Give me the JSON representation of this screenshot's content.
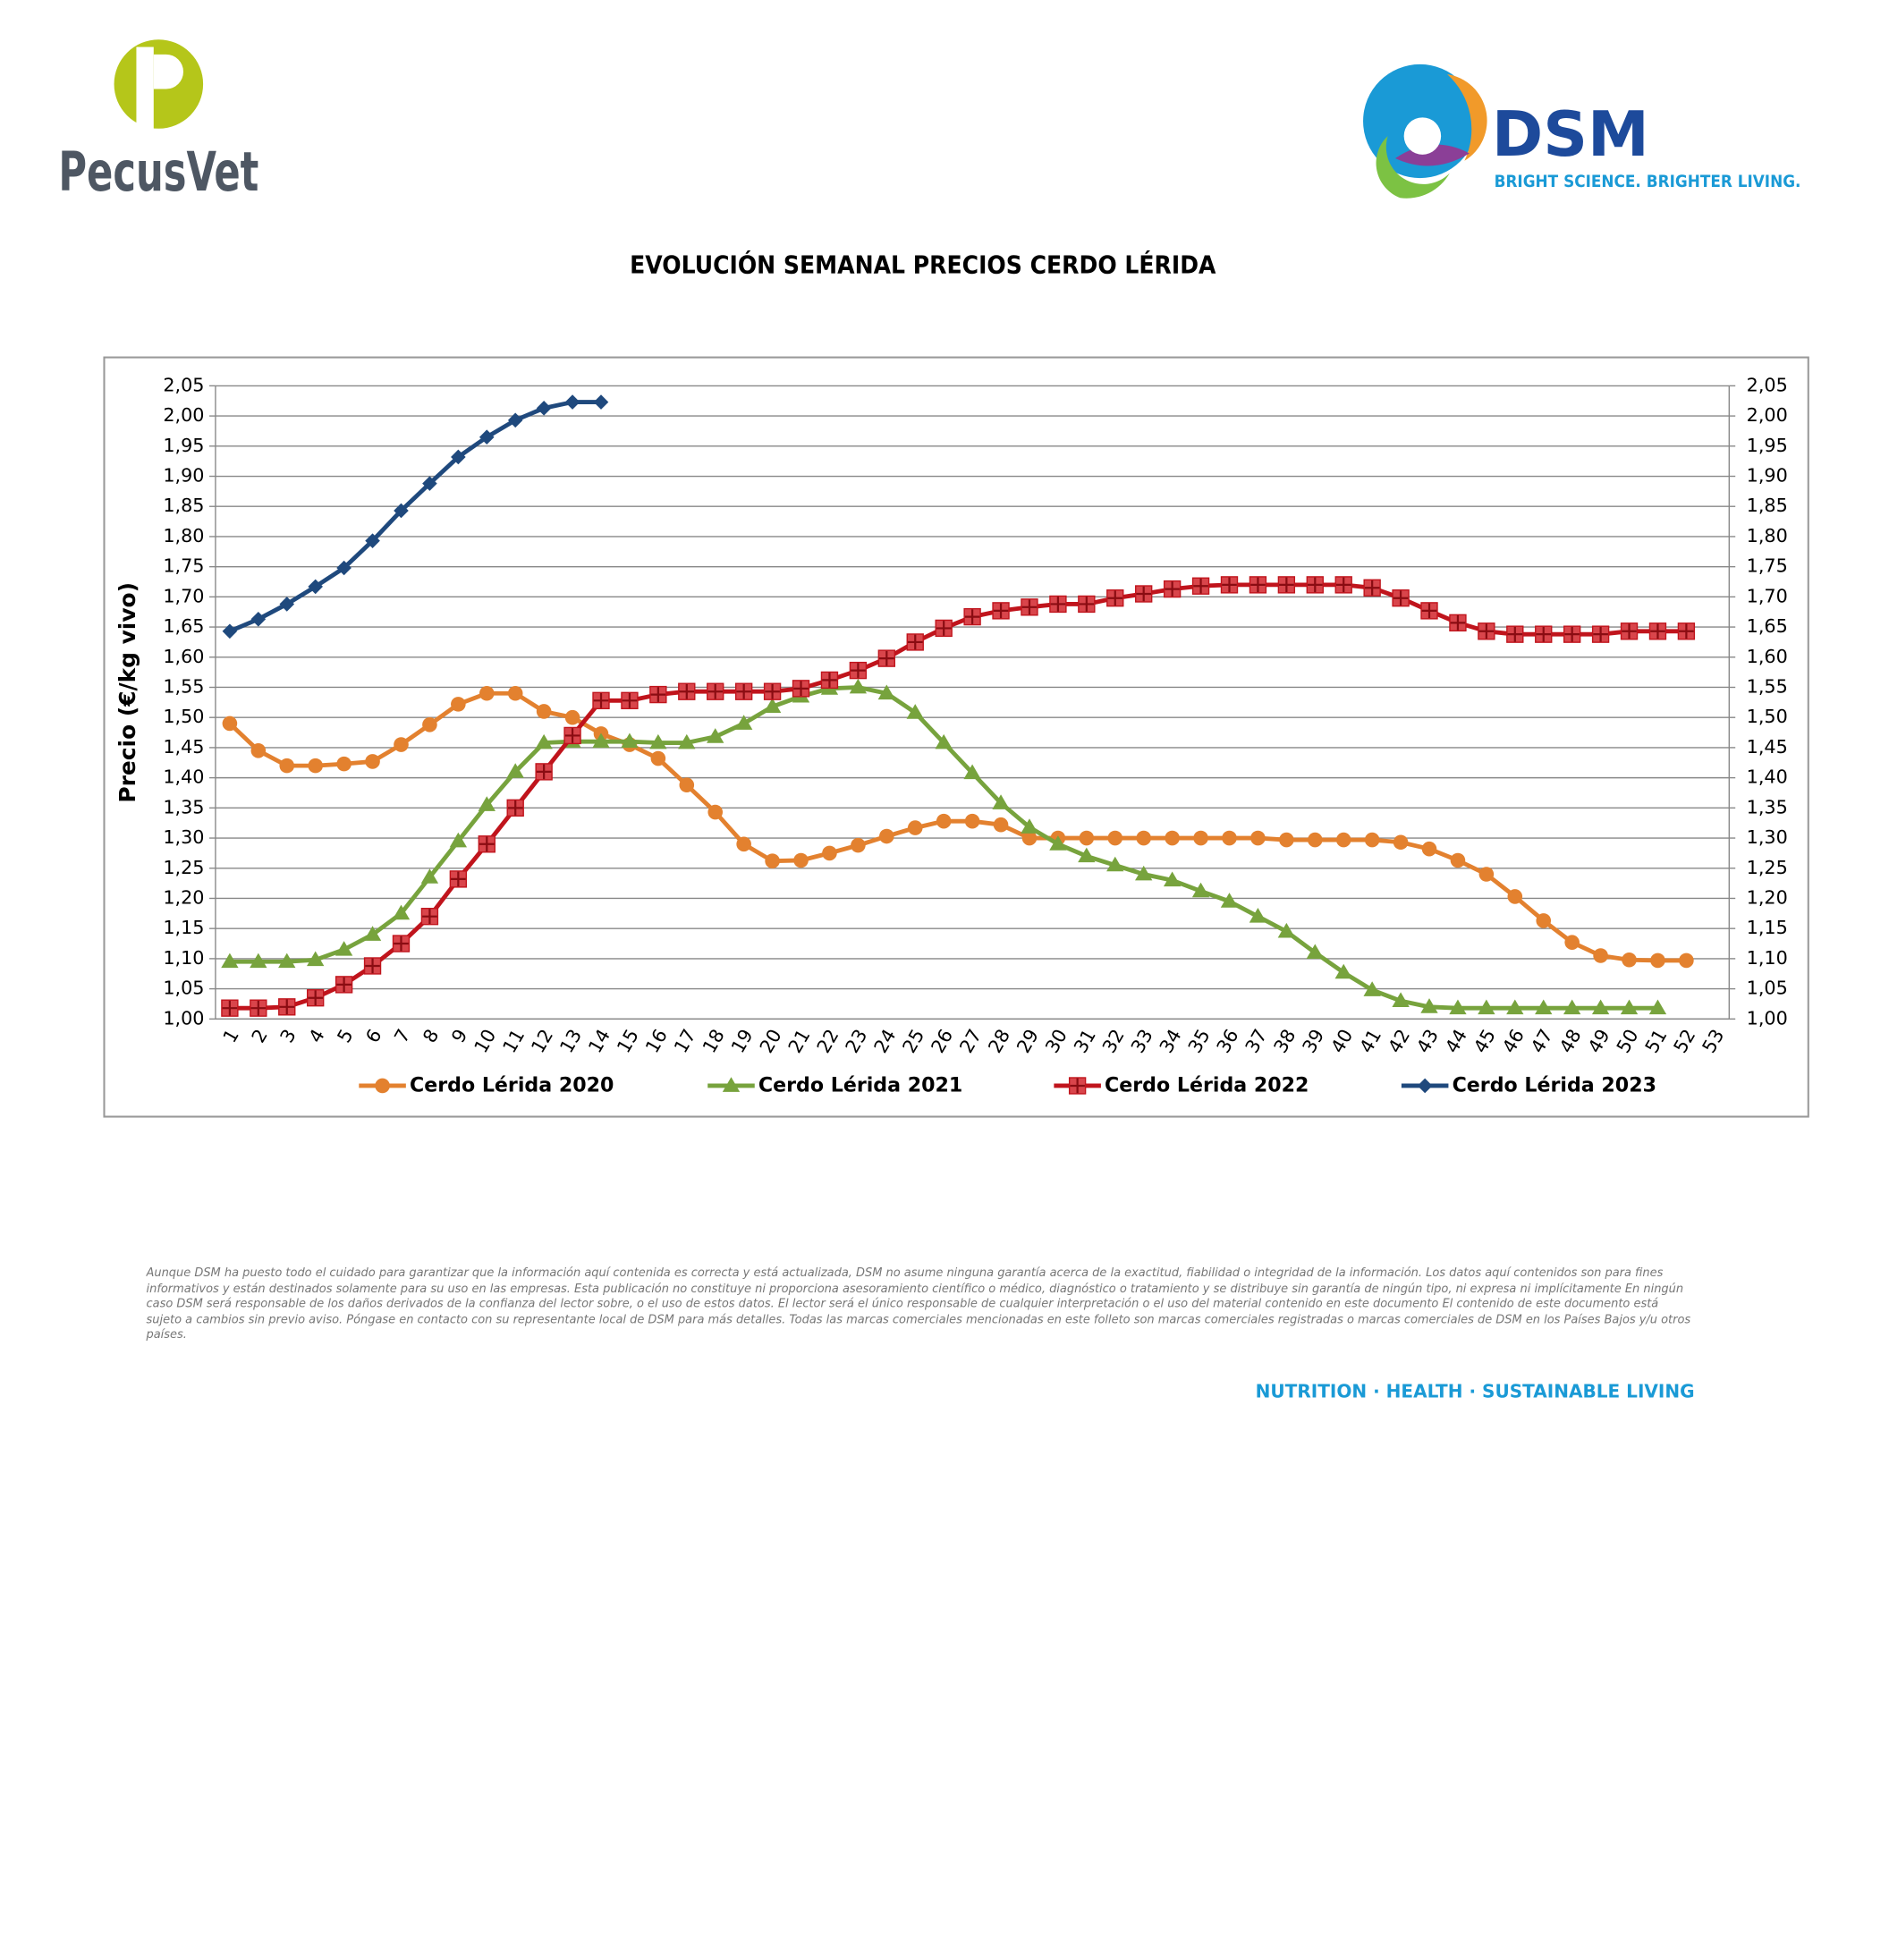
{
  "header": {
    "left_logo": "PecusVet",
    "right_logo": "DSM",
    "right_tagline": "BRIGHT SCIENCE. BRIGHTER LIVING."
  },
  "chart_data": {
    "type": "line",
    "title": "EVOLUCIÓN SEMANAL PRECIOS CERDO LÉRIDA",
    "ylabel": "Precio (€/kg vivo)",
    "categories": [
      "1",
      "2",
      "3",
      "4",
      "5",
      "6",
      "7",
      "8",
      "9",
      "10",
      "11",
      "12",
      "13",
      "14",
      "15",
      "16",
      "17",
      "18",
      "19",
      "20",
      "21",
      "22",
      "23",
      "24",
      "25",
      "26",
      "27",
      "28",
      "29",
      "30",
      "31",
      "32",
      "33",
      "34",
      "35",
      "36",
      "37",
      "38",
      "39",
      "40",
      "41",
      "42",
      "43",
      "44",
      "45",
      "46",
      "47",
      "48",
      "49",
      "50",
      "51",
      "52",
      "53"
    ],
    "ylim": [
      1,
      2.05
    ],
    "yticks": [
      {
        "value": 1,
        "label": "1,00"
      },
      {
        "value": 1.05,
        "label": "1,05"
      },
      {
        "value": 1.1,
        "label": "1,10"
      },
      {
        "value": 1.15,
        "label": "1,15"
      },
      {
        "value": 1.2,
        "label": "1,20"
      },
      {
        "value": 1.25,
        "label": "1,25"
      },
      {
        "value": 1.3,
        "label": "1,30"
      },
      {
        "value": 1.35,
        "label": "1,35"
      },
      {
        "value": 1.4,
        "label": "1,40"
      },
      {
        "value": 1.45,
        "label": "1,45"
      },
      {
        "value": 1.5,
        "label": "1,50"
      },
      {
        "value": 1.55,
        "label": "1,55"
      },
      {
        "value": 1.6,
        "label": "1,60"
      },
      {
        "value": 1.65,
        "label": "1,65"
      },
      {
        "value": 1.7,
        "label": "1,70"
      },
      {
        "value": 1.75,
        "label": "1,75"
      },
      {
        "value": 1.8,
        "label": "1,80"
      },
      {
        "value": 1.85,
        "label": "1,85"
      },
      {
        "value": 1.9,
        "label": "1,90"
      },
      {
        "value": 1.95,
        "label": "1,95"
      },
      {
        "value": 2,
        "label": "2,00"
      },
      {
        "value": 2.05,
        "label": "2,05"
      }
    ],
    "y2lim": [
      1,
      2.05
    ],
    "y2ticks": [
      {
        "value": 1,
        "label": "1,00"
      },
      {
        "value": 1.05,
        "label": "1,05"
      },
      {
        "value": 1.1,
        "label": "1,10"
      },
      {
        "value": 1.15,
        "label": "1,15"
      },
      {
        "value": 1.2,
        "label": "1,20"
      },
      {
        "value": 1.25,
        "label": "1,25"
      },
      {
        "value": 1.3,
        "label": "1,30"
      },
      {
        "value": 1.35,
        "label": "1,35"
      },
      {
        "value": 1.4,
        "label": "1,40"
      },
      {
        "value": 1.45,
        "label": "1,45"
      },
      {
        "value": 1.5,
        "label": "1,50"
      },
      {
        "value": 1.55,
        "label": "1,55"
      },
      {
        "value": 1.6,
        "label": "1,60"
      },
      {
        "value": 1.65,
        "label": "1,65"
      },
      {
        "value": 1.7,
        "label": "1,70"
      },
      {
        "value": 1.75,
        "label": "1,75"
      },
      {
        "value": 1.8,
        "label": "1,80"
      },
      {
        "value": 1.85,
        "label": "1,85"
      },
      {
        "value": 1.9,
        "label": "1,90"
      },
      {
        "value": 1.95,
        "label": "1,95"
      },
      {
        "value": 2,
        "label": "2,00"
      },
      {
        "value": 2.05,
        "label": "2,05"
      }
    ],
    "grid": true,
    "legend": "bottom",
    "series": [
      {
        "name": "Cerdo Lérida 2020",
        "color": "#e3812f",
        "marker": "circle",
        "values": [
          1.49,
          1.445,
          1.42,
          1.42,
          1.423,
          1.427,
          1.455,
          1.488,
          1.522,
          1.54,
          1.54,
          1.51,
          1.5,
          1.473,
          1.455,
          1.432,
          1.388,
          1.343,
          1.29,
          1.262,
          1.263,
          1.275,
          1.288,
          1.303,
          1.317,
          1.328,
          1.328,
          1.322,
          1.3,
          1.3,
          1.3,
          1.3,
          1.3,
          1.3,
          1.3,
          1.3,
          1.3,
          1.297,
          1.297,
          1.297,
          1.297,
          1.293,
          1.282,
          1.263,
          1.24,
          1.203,
          1.163,
          1.127,
          1.105,
          1.098,
          1.097,
          1.097,
          null
        ]
      },
      {
        "name": "Cerdo Lérida 2021",
        "color": "#77a33d",
        "marker": "triangle",
        "values": [
          1.095,
          1.095,
          1.095,
          1.098,
          1.115,
          1.14,
          1.175,
          1.235,
          1.295,
          1.355,
          1.41,
          1.458,
          1.46,
          1.46,
          1.46,
          1.458,
          1.458,
          1.468,
          1.49,
          1.518,
          1.535,
          1.548,
          1.55,
          1.54,
          1.508,
          1.458,
          1.408,
          1.358,
          1.318,
          1.29,
          1.27,
          1.255,
          1.24,
          1.23,
          1.212,
          1.195,
          1.17,
          1.145,
          1.11,
          1.077,
          1.048,
          1.03,
          1.02,
          1.018,
          1.018,
          1.018,
          1.018,
          1.018,
          1.018,
          1.018,
          1.018,
          null,
          null
        ]
      },
      {
        "name": "Cerdo Lérida 2022",
        "color": "#c0141c",
        "marker": "square",
        "values": [
          1.018,
          1.018,
          1.02,
          1.035,
          1.057,
          1.088,
          1.125,
          1.17,
          1.232,
          1.29,
          1.35,
          1.41,
          1.47,
          1.528,
          1.528,
          1.538,
          1.543,
          1.543,
          1.543,
          1.543,
          1.548,
          1.562,
          1.578,
          1.598,
          1.625,
          1.648,
          1.667,
          1.677,
          1.683,
          1.688,
          1.688,
          1.698,
          1.705,
          1.713,
          1.718,
          1.72,
          1.72,
          1.72,
          1.72,
          1.72,
          1.715,
          1.698,
          1.677,
          1.657,
          1.643,
          1.638,
          1.638,
          1.638,
          1.638,
          1.643,
          1.643,
          1.643,
          null
        ]
      },
      {
        "name": "Cerdo Lérida 2023",
        "color": "#1f497d",
        "marker": "diamond",
        "values": [
          1.643,
          1.663,
          1.688,
          1.717,
          1.748,
          1.793,
          1.843,
          1.888,
          1.932,
          1.965,
          1.993,
          2.013,
          2.023,
          2.023,
          null,
          null,
          null,
          null,
          null,
          null,
          null,
          null,
          null,
          null,
          null,
          null,
          null,
          null,
          null,
          null,
          null,
          null,
          null,
          null,
          null,
          null,
          null,
          null,
          null,
          null,
          null,
          null,
          null,
          null,
          null,
          null,
          null,
          null,
          null,
          null,
          null,
          null,
          null
        ]
      }
    ]
  },
  "disclaimer": "Aunque DSM ha puesto todo el cuidado para garantizar que la información aquí contenida es correcta y está actualizada, DSM no asume ninguna garantía acerca de la exactitud, fiabilidad o integridad de la información. Los datos aquí contenidos son para fines informativos y están destinados solamente para su uso en las empresas. Esta publicación no constituye ni proporciona asesoramiento científico o médico, diagnóstico o tratamiento y se distribuye sin garantía de ningún tipo, ni expresa ni implícitamente En ningún caso DSM será responsable de los daños derivados de la confianza del lector sobre, o el uso de estos datos. El lector será el único responsable de cualquier interpretación o el uso del material contenido en este documento El contenido de este documento está sujeto a cambios sin previo aviso. Póngase en contacto con su representante local de DSM para más detalles. Todas las marcas comerciales mencionadas en este folleto son marcas comerciales registradas o marcas comerciales de DSM en los Países Bajos y/u otros países.",
  "footer": "NUTRITION · HEALTH · SUSTAINABLE LIVING"
}
